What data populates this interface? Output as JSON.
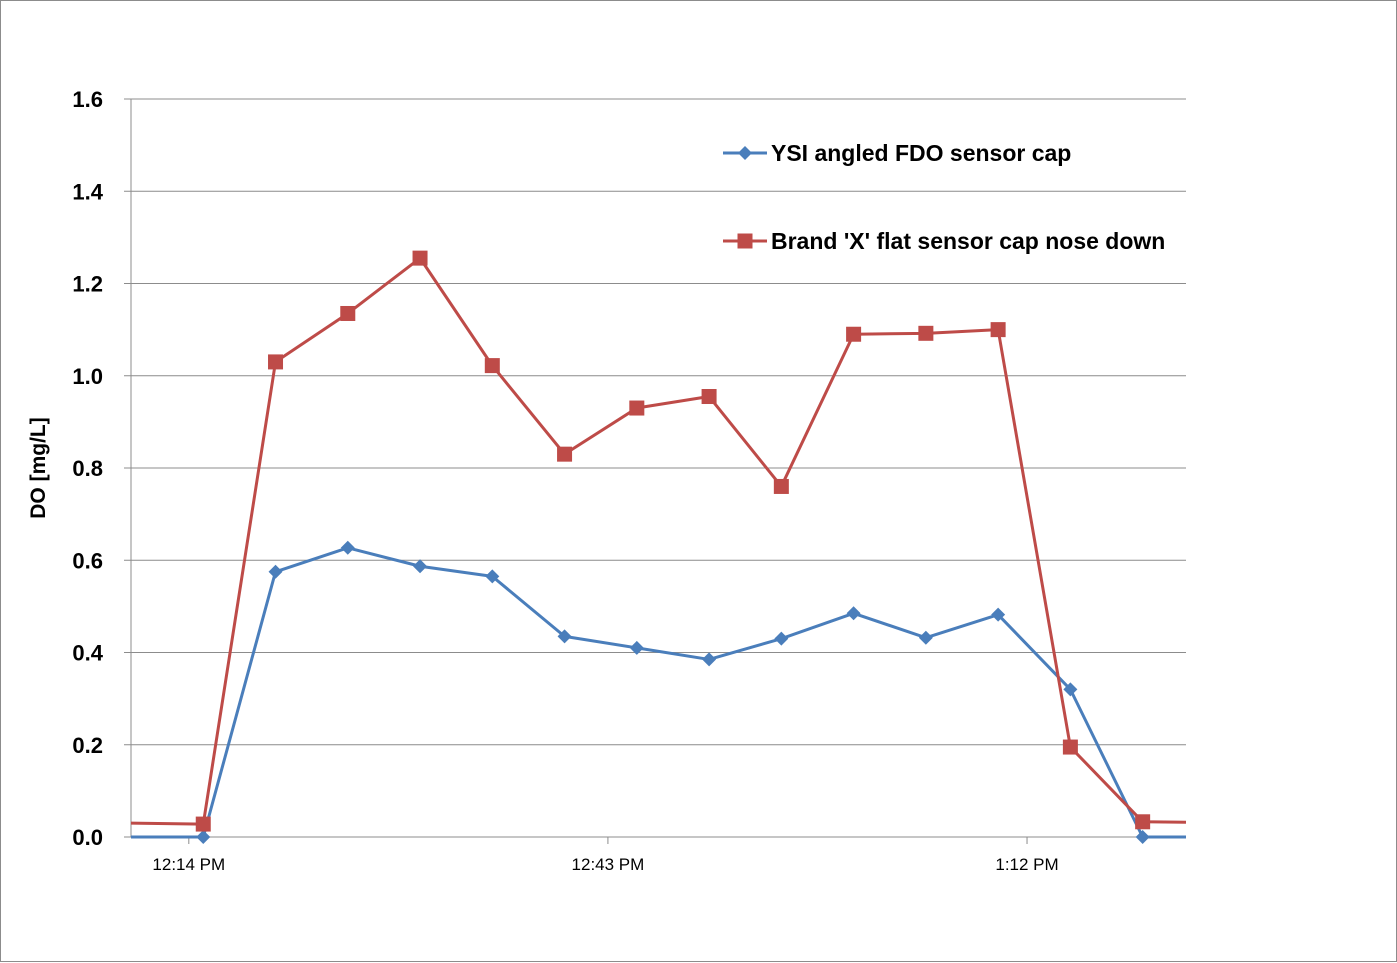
{
  "chart_data": {
    "type": "line",
    "title": "",
    "xlabel": "",
    "ylabel": "DO  [mg/L]",
    "ylim": [
      0,
      1.6
    ],
    "yticks": [
      "0.0",
      "0.2",
      "0.4",
      "0.6",
      "0.8",
      "1.0",
      "1.2",
      "1.4",
      "1.6"
    ],
    "xlim": [
      "12:10 PM",
      "1:23 PM"
    ],
    "xticks": [
      "12:14 PM",
      "12:43 PM",
      "1:12 PM"
    ],
    "grid": "horizontal",
    "legend_position": "top-right",
    "x": [
      "12:15 PM",
      "12:20 PM",
      "12:25 PM",
      "12:30 PM",
      "12:35 PM",
      "12:40 PM",
      "12:45 PM",
      "12:50 PM",
      "12:55 PM",
      "1:00 PM",
      "1:05 PM",
      "1:10 PM",
      "1:15 PM",
      "1:20 PM"
    ],
    "series": [
      {
        "name": "YSI angled FDO sensor cap",
        "color": "#4a7ebb",
        "marker": "diamond",
        "values": [
          0.0,
          0.575,
          0.627,
          0.587,
          0.565,
          0.435,
          0.41,
          0.385,
          0.43,
          0.485,
          0.432,
          0.482,
          0.32,
          0.0
        ],
        "edge_start": 0.0,
        "edge_end": 0.0
      },
      {
        "name": "Brand 'X' flat sensor cap nose down",
        "color": "#be4b48",
        "marker": "square",
        "values": [
          0.028,
          1.03,
          1.135,
          1.255,
          1.022,
          0.83,
          0.93,
          0.955,
          0.76,
          1.09,
          1.092,
          1.1,
          0.195,
          0.033
        ],
        "edge_start": 0.03,
        "edge_end": 0.032
      }
    ]
  }
}
